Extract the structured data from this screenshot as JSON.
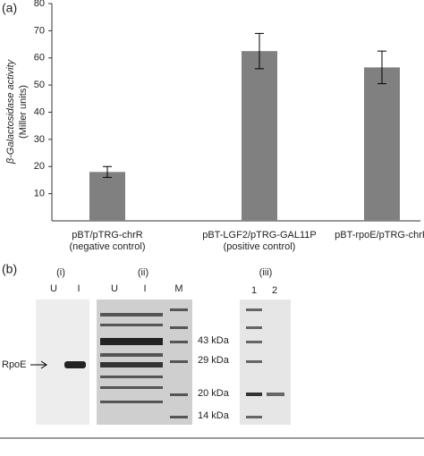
{
  "chart_data": {
    "type": "bar",
    "panel_label": "(a)",
    "ylabel": [
      "β-Galactosidase activity",
      "(Miller units)"
    ],
    "categories": [
      "pBT/pTRG-chrR",
      "pBT-LGF2/pTRG-GAL11P",
      "pBT-rpoE/pTRG-chrR"
    ],
    "subcategories": [
      "(negative control)",
      "(positive control)",
      null
    ],
    "values": [
      18,
      62.5,
      56.5
    ],
    "errors": [
      2,
      6.5,
      6
    ],
    "color": "#808080",
    "ylim": [
      0,
      80
    ],
    "yticks": [
      10,
      20,
      30,
      40,
      50,
      60,
      70,
      80
    ]
  },
  "gel": {
    "panel_label": "(b)",
    "subpanels": [
      "(i)",
      "(ii)",
      "(iii)"
    ],
    "lanes_i": [
      "U",
      "I"
    ],
    "lanes_ii": [
      "U",
      "I",
      "M"
    ],
    "lanes_iii": [
      "1",
      "2"
    ],
    "band_label": "RpoE",
    "markers": [
      "43 kDa",
      "29 kDa",
      "20 kDa",
      "14 kDa"
    ]
  }
}
